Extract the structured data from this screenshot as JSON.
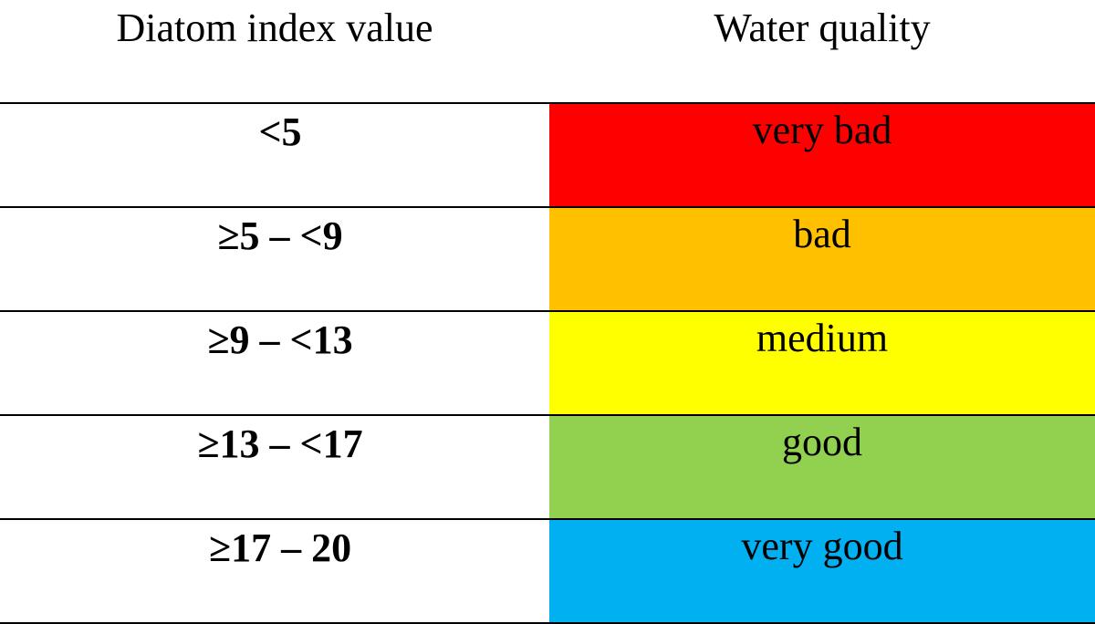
{
  "table": {
    "headers": {
      "index": "Diatom index value",
      "quality": "Water quality"
    },
    "rows": [
      {
        "index": "<5",
        "quality": "very bad",
        "color": "#ff0000"
      },
      {
        "index": "≥5 – <9",
        "quality": "bad",
        "color": "#ffc000"
      },
      {
        "index": "≥9 – <13",
        "quality": "medium",
        "color": "#ffff00"
      },
      {
        "index": "≥13 – <17",
        "quality": "good",
        "color": "#92d050"
      },
      {
        "index": "≥17 – 20",
        "quality": "very good",
        "color": "#00b0f0"
      }
    ]
  }
}
